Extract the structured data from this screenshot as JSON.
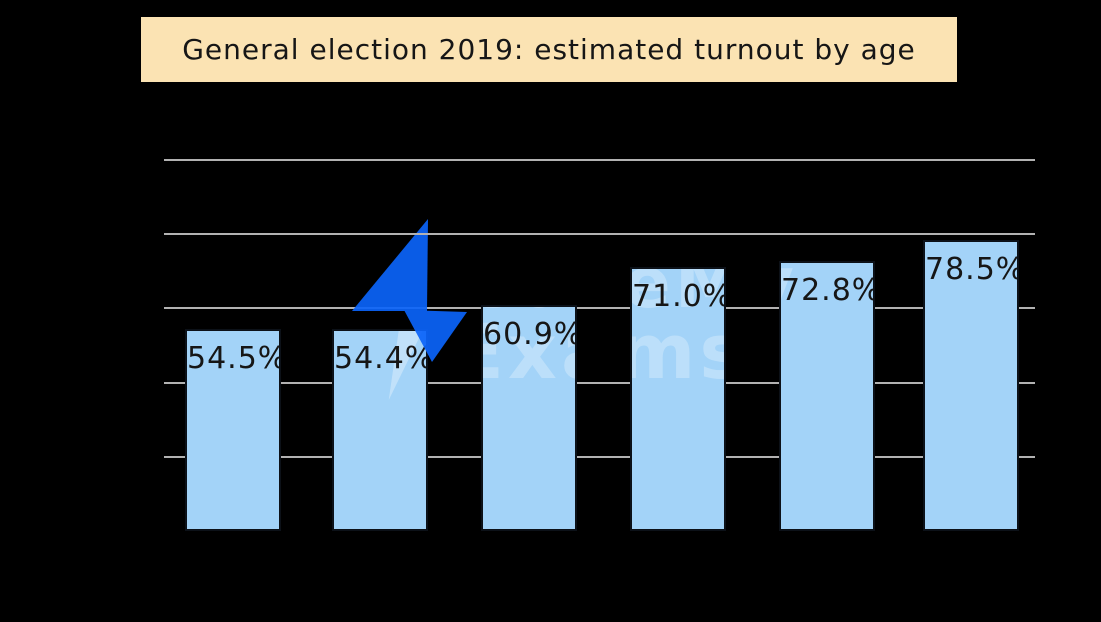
{
  "title": "General election 2019: estimated turnout by age",
  "watermark": {
    "line1": "SaveMy",
    "line2": "Exams",
    "bolt_color": "#0b64fa"
  },
  "colors": {
    "background": "#000000",
    "title_bg": "#fbe3b3",
    "title_text": "#161616",
    "bar_fill": "#a3d3f8",
    "bar_border": "#0c1118",
    "gridline": "#b2b2b2",
    "label_text": "#161616"
  },
  "chart_data": {
    "type": "bar",
    "title": "General election 2019: estimated turnout by age",
    "values": [
      54.5,
      54.4,
      60.9,
      71.0,
      72.8,
      78.5
    ],
    "bar_labels": [
      "54.5%",
      "54.4%",
      "60.9%",
      "71.0%",
      "72.8%",
      "78.5%"
    ],
    "xlabel": "",
    "ylabel": "",
    "ylim": [
      0,
      100
    ],
    "gridline_values": [
      20,
      40,
      60,
      80,
      100
    ],
    "grid": true,
    "legend": false,
    "value_label_position": "inside-top"
  }
}
